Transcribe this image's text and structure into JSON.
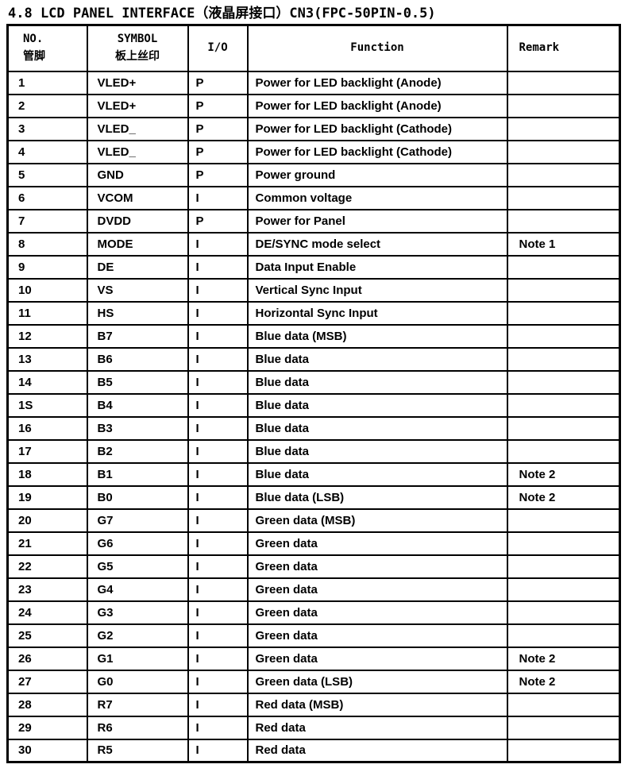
{
  "title": "4.8 LCD PANEL INTERFACE（液晶屏接口）CN3(FPC-50PIN-0.5)",
  "table": {
    "headers": {
      "no_en": "NO.",
      "no_cn": "管脚",
      "symbol_en": "SYMBOL",
      "symbol_cn": "板上丝印",
      "io": "I/O",
      "function": "Function",
      "remark": "Remark"
    },
    "rows": [
      {
        "no": "1",
        "symbol": "VLED+",
        "io": "P",
        "function": "Power for LED backlight (Anode)",
        "remark": ""
      },
      {
        "no": "2",
        "symbol": "VLED+",
        "io": "P",
        "function": "Power for LED backlight (Anode)",
        "remark": ""
      },
      {
        "no": "3",
        "symbol": "VLED_",
        "io": "P",
        "function": "Power for LED backlight (Cathode)",
        "remark": ""
      },
      {
        "no": "4",
        "symbol": "VLED_",
        "io": "P",
        "function": "Power for LED backlight (Cathode)",
        "remark": ""
      },
      {
        "no": "5",
        "symbol": "GND",
        "io": "P",
        "function": "Power ground",
        "remark": ""
      },
      {
        "no": "6",
        "symbol": "VCOM",
        "io": "I",
        "function": "Common voltage",
        "remark": ""
      },
      {
        "no": "7",
        "symbol": "DVDD",
        "io": "P",
        "function": "Power for Panel",
        "remark": ""
      },
      {
        "no": "8",
        "symbol": "MODE",
        "io": "I",
        "function": "DE/SYNC mode select",
        "remark": "Note 1"
      },
      {
        "no": "9",
        "symbol": "DE",
        "io": "I",
        "function": "Data Input Enable",
        "remark": ""
      },
      {
        "no": "10",
        "symbol": "VS",
        "io": "I",
        "function": "Vertical Sync Input",
        "remark": ""
      },
      {
        "no": "11",
        "symbol": "HS",
        "io": "I",
        "function": "Horizontal Sync Input",
        "remark": ""
      },
      {
        "no": "12",
        "symbol": "B7",
        "io": "I",
        "function": "Blue data (MSB)",
        "remark": ""
      },
      {
        "no": "13",
        "symbol": "B6",
        "io": "I",
        "function": "Blue data",
        "remark": ""
      },
      {
        "no": "14",
        "symbol": "B5",
        "io": "I",
        "function": "Blue data",
        "remark": ""
      },
      {
        "no": "1S",
        "symbol": "B4",
        "io": "I",
        "function": "Blue data",
        "remark": ""
      },
      {
        "no": "16",
        "symbol": "B3",
        "io": "I",
        "function": "Blue data",
        "remark": ""
      },
      {
        "no": "17",
        "symbol": "B2",
        "io": "I",
        "function": "Blue data",
        "remark": ""
      },
      {
        "no": "18",
        "symbol": "B1",
        "io": "I",
        "function": "Blue data",
        "remark": "Note 2"
      },
      {
        "no": "19",
        "symbol": "B0",
        "io": "I",
        "function": "Blue data (LSB)",
        "remark": "Note 2"
      },
      {
        "no": "20",
        "symbol": "G7",
        "io": "I",
        "function": "Green data (MSB)",
        "remark": ""
      },
      {
        "no": "21",
        "symbol": "G6",
        "io": "I",
        "function": "Green data",
        "remark": ""
      },
      {
        "no": "22",
        "symbol": "G5",
        "io": "I",
        "function": "Green data",
        "remark": ""
      },
      {
        "no": "23",
        "symbol": "G4",
        "io": "I",
        "function": "Green data",
        "remark": ""
      },
      {
        "no": "24",
        "symbol": "G3",
        "io": "I",
        "function": "Green data",
        "remark": ""
      },
      {
        "no": "25",
        "symbol": "G2",
        "io": "I",
        "function": "Green data",
        "remark": ""
      },
      {
        "no": "26",
        "symbol": "G1",
        "io": "I",
        "function": "Green data",
        "remark": "Note 2"
      },
      {
        "no": "27",
        "symbol": "G0",
        "io": "I",
        "function": "Green data (LSB)",
        "remark": "Note 2"
      },
      {
        "no": "28",
        "symbol": "R7",
        "io": "I",
        "function": "Red data (MSB)",
        "remark": ""
      },
      {
        "no": "29",
        "symbol": "R6",
        "io": "I",
        "function": "Red data",
        "remark": ""
      },
      {
        "no": "30",
        "symbol": "R5",
        "io": "I",
        "function": "Red data",
        "remark": ""
      }
    ]
  }
}
